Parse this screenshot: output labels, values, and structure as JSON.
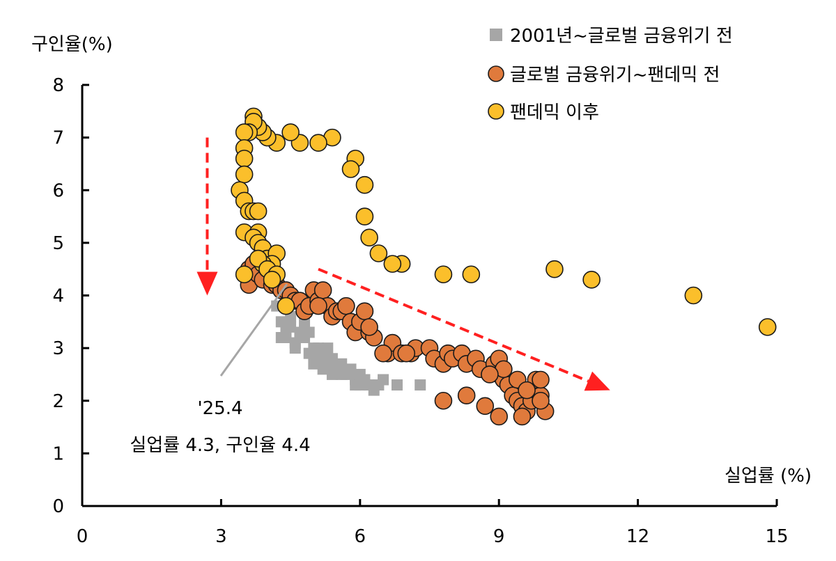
{
  "chart_data": {
    "type": "scatter",
    "xlabel": "실업률 (%)",
    "ylabel": "구인율(%)",
    "xlim": [
      0,
      15
    ],
    "ylim": [
      0,
      8
    ],
    "xticks": [
      0,
      3,
      6,
      9,
      12,
      15
    ],
    "yticks": [
      0,
      1,
      2,
      3,
      4,
      5,
      6,
      7,
      8
    ],
    "grid": false,
    "legend_position": "top-right",
    "series": [
      {
        "name": "2001년~글로벌 금융위기 전",
        "marker": "square",
        "color": "#a6a6a6",
        "points": [
          [
            4.2,
            3.8
          ],
          [
            4.3,
            3.5
          ],
          [
            4.4,
            3.3
          ],
          [
            4.3,
            3.2
          ],
          [
            4.4,
            3.2
          ],
          [
            4.5,
            3.4
          ],
          [
            4.6,
            3.1
          ],
          [
            4.7,
            3.3
          ],
          [
            4.6,
            3.0
          ],
          [
            4.8,
            3.2
          ],
          [
            4.9,
            2.9
          ],
          [
            5.0,
            3.0
          ],
          [
            5.1,
            2.8
          ],
          [
            5.2,
            2.9
          ],
          [
            5.3,
            2.7
          ],
          [
            5.4,
            2.8
          ],
          [
            5.2,
            2.6
          ],
          [
            5.5,
            2.6
          ],
          [
            5.6,
            2.7
          ],
          [
            5.7,
            2.5
          ],
          [
            5.8,
            2.6
          ],
          [
            5.9,
            2.4
          ],
          [
            6.0,
            2.5
          ],
          [
            5.9,
            2.3
          ],
          [
            6.1,
            2.4
          ],
          [
            6.2,
            2.3
          ],
          [
            6.3,
            2.2
          ],
          [
            6.5,
            2.4
          ],
          [
            6.8,
            2.3
          ],
          [
            7.3,
            2.3
          ],
          [
            5.4,
            2.5
          ],
          [
            5.1,
            3.0
          ],
          [
            4.8,
            3.5
          ],
          [
            4.9,
            3.3
          ],
          [
            5.3,
            3.0
          ],
          [
            5.6,
            2.5
          ],
          [
            6.0,
            2.3
          ],
          [
            6.4,
            2.3
          ],
          [
            5.0,
            2.7
          ],
          [
            4.5,
            3.6
          ]
        ]
      },
      {
        "name": "글로벌 금융위기~팬데믹 전",
        "marker": "circle",
        "color": "#e07a3c",
        "points": [
          [
            3.6,
            4.2
          ],
          [
            3.6,
            4.5
          ],
          [
            3.7,
            4.6
          ],
          [
            3.8,
            4.4
          ],
          [
            3.9,
            4.3
          ],
          [
            4.0,
            4.5
          ],
          [
            4.1,
            4.2
          ],
          [
            4.2,
            4.2
          ],
          [
            4.3,
            4.1
          ],
          [
            4.4,
            4.1
          ],
          [
            4.5,
            4.0
          ],
          [
            4.6,
            3.9
          ],
          [
            4.7,
            3.9
          ],
          [
            4.8,
            3.7
          ],
          [
            4.9,
            3.8
          ],
          [
            5.0,
            4.1
          ],
          [
            5.1,
            3.9
          ],
          [
            5.2,
            4.1
          ],
          [
            5.3,
            3.8
          ],
          [
            5.4,
            3.6
          ],
          [
            5.5,
            3.7
          ],
          [
            5.6,
            3.7
          ],
          [
            5.7,
            3.8
          ],
          [
            5.8,
            3.5
          ],
          [
            5.9,
            3.3
          ],
          [
            6.0,
            3.5
          ],
          [
            6.1,
            3.7
          ],
          [
            6.2,
            3.3
          ],
          [
            6.3,
            3.2
          ],
          [
            6.2,
            3.4
          ],
          [
            6.6,
            2.9
          ],
          [
            6.7,
            3.1
          ],
          [
            6.9,
            2.9
          ],
          [
            7.1,
            2.9
          ],
          [
            7.2,
            3.0
          ],
          [
            7.5,
            3.0
          ],
          [
            7.6,
            2.8
          ],
          [
            7.8,
            2.7
          ],
          [
            7.9,
            2.9
          ],
          [
            8.0,
            2.8
          ],
          [
            8.2,
            2.9
          ],
          [
            8.3,
            2.7
          ],
          [
            8.5,
            2.8
          ],
          [
            8.6,
            2.6
          ],
          [
            8.9,
            2.7
          ],
          [
            9.0,
            2.8
          ],
          [
            9.0,
            2.5
          ],
          [
            9.1,
            2.4
          ],
          [
            9.2,
            2.3
          ],
          [
            9.3,
            2.1
          ],
          [
            9.4,
            2.0
          ],
          [
            9.5,
            1.9
          ],
          [
            9.6,
            1.8
          ],
          [
            9.7,
            2.0
          ],
          [
            9.8,
            2.2
          ],
          [
            9.9,
            2.1
          ],
          [
            10.0,
            1.8
          ],
          [
            9.8,
            2.4
          ],
          [
            9.9,
            2.4
          ],
          [
            9.5,
            1.7
          ],
          [
            9.0,
            1.7
          ],
          [
            8.7,
            1.9
          ],
          [
            8.3,
            2.1
          ],
          [
            7.8,
            2.0
          ],
          [
            9.1,
            2.6
          ],
          [
            9.4,
            2.4
          ],
          [
            9.6,
            2.2
          ],
          [
            9.9,
            2.0
          ],
          [
            8.8,
            2.5
          ],
          [
            7.0,
            2.9
          ],
          [
            6.5,
            2.9
          ],
          [
            5.1,
            3.8
          ]
        ]
      },
      {
        "name": "팬데믹 이후",
        "marker": "circle",
        "color": "#fbbf2b",
        "points": [
          [
            14.8,
            3.4
          ],
          [
            13.2,
            4.0
          ],
          [
            11.0,
            4.3
          ],
          [
            10.2,
            4.5
          ],
          [
            8.4,
            4.4
          ],
          [
            7.8,
            4.4
          ],
          [
            6.9,
            4.6
          ],
          [
            6.7,
            4.6
          ],
          [
            6.4,
            4.8
          ],
          [
            6.2,
            5.1
          ],
          [
            6.1,
            5.5
          ],
          [
            6.1,
            6.1
          ],
          [
            5.9,
            6.6
          ],
          [
            5.8,
            6.4
          ],
          [
            5.4,
            7.0
          ],
          [
            5.1,
            6.9
          ],
          [
            4.7,
            6.9
          ],
          [
            4.5,
            7.1
          ],
          [
            4.2,
            6.9
          ],
          [
            4.0,
            7.0
          ],
          [
            3.9,
            7.1
          ],
          [
            3.8,
            7.2
          ],
          [
            3.7,
            7.4
          ],
          [
            3.7,
            7.3
          ],
          [
            3.6,
            7.1
          ],
          [
            3.5,
            7.1
          ],
          [
            3.5,
            6.8
          ],
          [
            3.5,
            6.6
          ],
          [
            3.5,
            6.3
          ],
          [
            3.4,
            6.0
          ],
          [
            3.5,
            5.8
          ],
          [
            3.6,
            5.6
          ],
          [
            3.7,
            5.6
          ],
          [
            3.8,
            5.6
          ],
          [
            3.5,
            5.2
          ],
          [
            3.8,
            5.2
          ],
          [
            3.7,
            5.1
          ],
          [
            3.8,
            5.0
          ],
          [
            3.9,
            4.9
          ],
          [
            4.0,
            4.7
          ],
          [
            4.2,
            4.8
          ],
          [
            4.1,
            4.6
          ],
          [
            3.9,
            4.6
          ],
          [
            3.8,
            4.7
          ],
          [
            4.0,
            4.5
          ],
          [
            3.5,
            4.4
          ],
          [
            4.2,
            4.4
          ],
          [
            4.1,
            4.3
          ],
          [
            4.4,
            3.8
          ]
        ]
      }
    ],
    "annotations": [
      {
        "text_line1": "'25.4",
        "text_line2": "실업률 4.3, 구인율 4.4",
        "point": [
          4.3,
          4.4
        ]
      }
    ],
    "trend_arrows": [
      {
        "from": [
          2.7,
          7.0
        ],
        "to": [
          2.7,
          4.0
        ],
        "color": "#ff2020"
      },
      {
        "from": [
          5.1,
          4.5
        ],
        "to": [
          11.4,
          2.2
        ],
        "color": "#ff2020"
      }
    ]
  }
}
